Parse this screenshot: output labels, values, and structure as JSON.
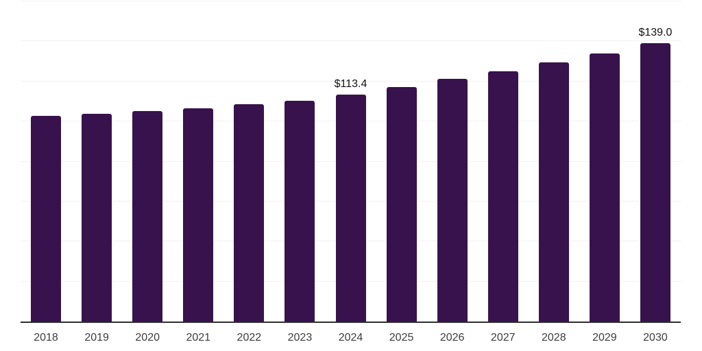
{
  "chart_data": {
    "type": "bar",
    "title": "",
    "xlabel": "",
    "ylabel": "",
    "categories": [
      "2018",
      "2019",
      "2020",
      "2021",
      "2022",
      "2023",
      "2024",
      "2025",
      "2026",
      "2027",
      "2028",
      "2029",
      "2030"
    ],
    "values": [
      102.7,
      103.8,
      105.1,
      106.6,
      108.5,
      110.3,
      113.4,
      117.1,
      121.2,
      125.0,
      129.4,
      134.1,
      139.0
    ],
    "annotations": [
      {
        "category": "2024",
        "text": "$113.4"
      },
      {
        "category": "2030",
        "text": "$139.0"
      }
    ],
    "value_prefix": "$",
    "ylim": [
      0,
      160
    ],
    "grid_step": 20,
    "grid": true,
    "legend": false,
    "y_axis_labels_visible": false,
    "bar_color": "#37124C",
    "gridline_color": "#f1f1f3",
    "axis_color": "#2e2e2e",
    "annotation_color": "#111111",
    "tick_label_color": "#3c3c3c"
  }
}
